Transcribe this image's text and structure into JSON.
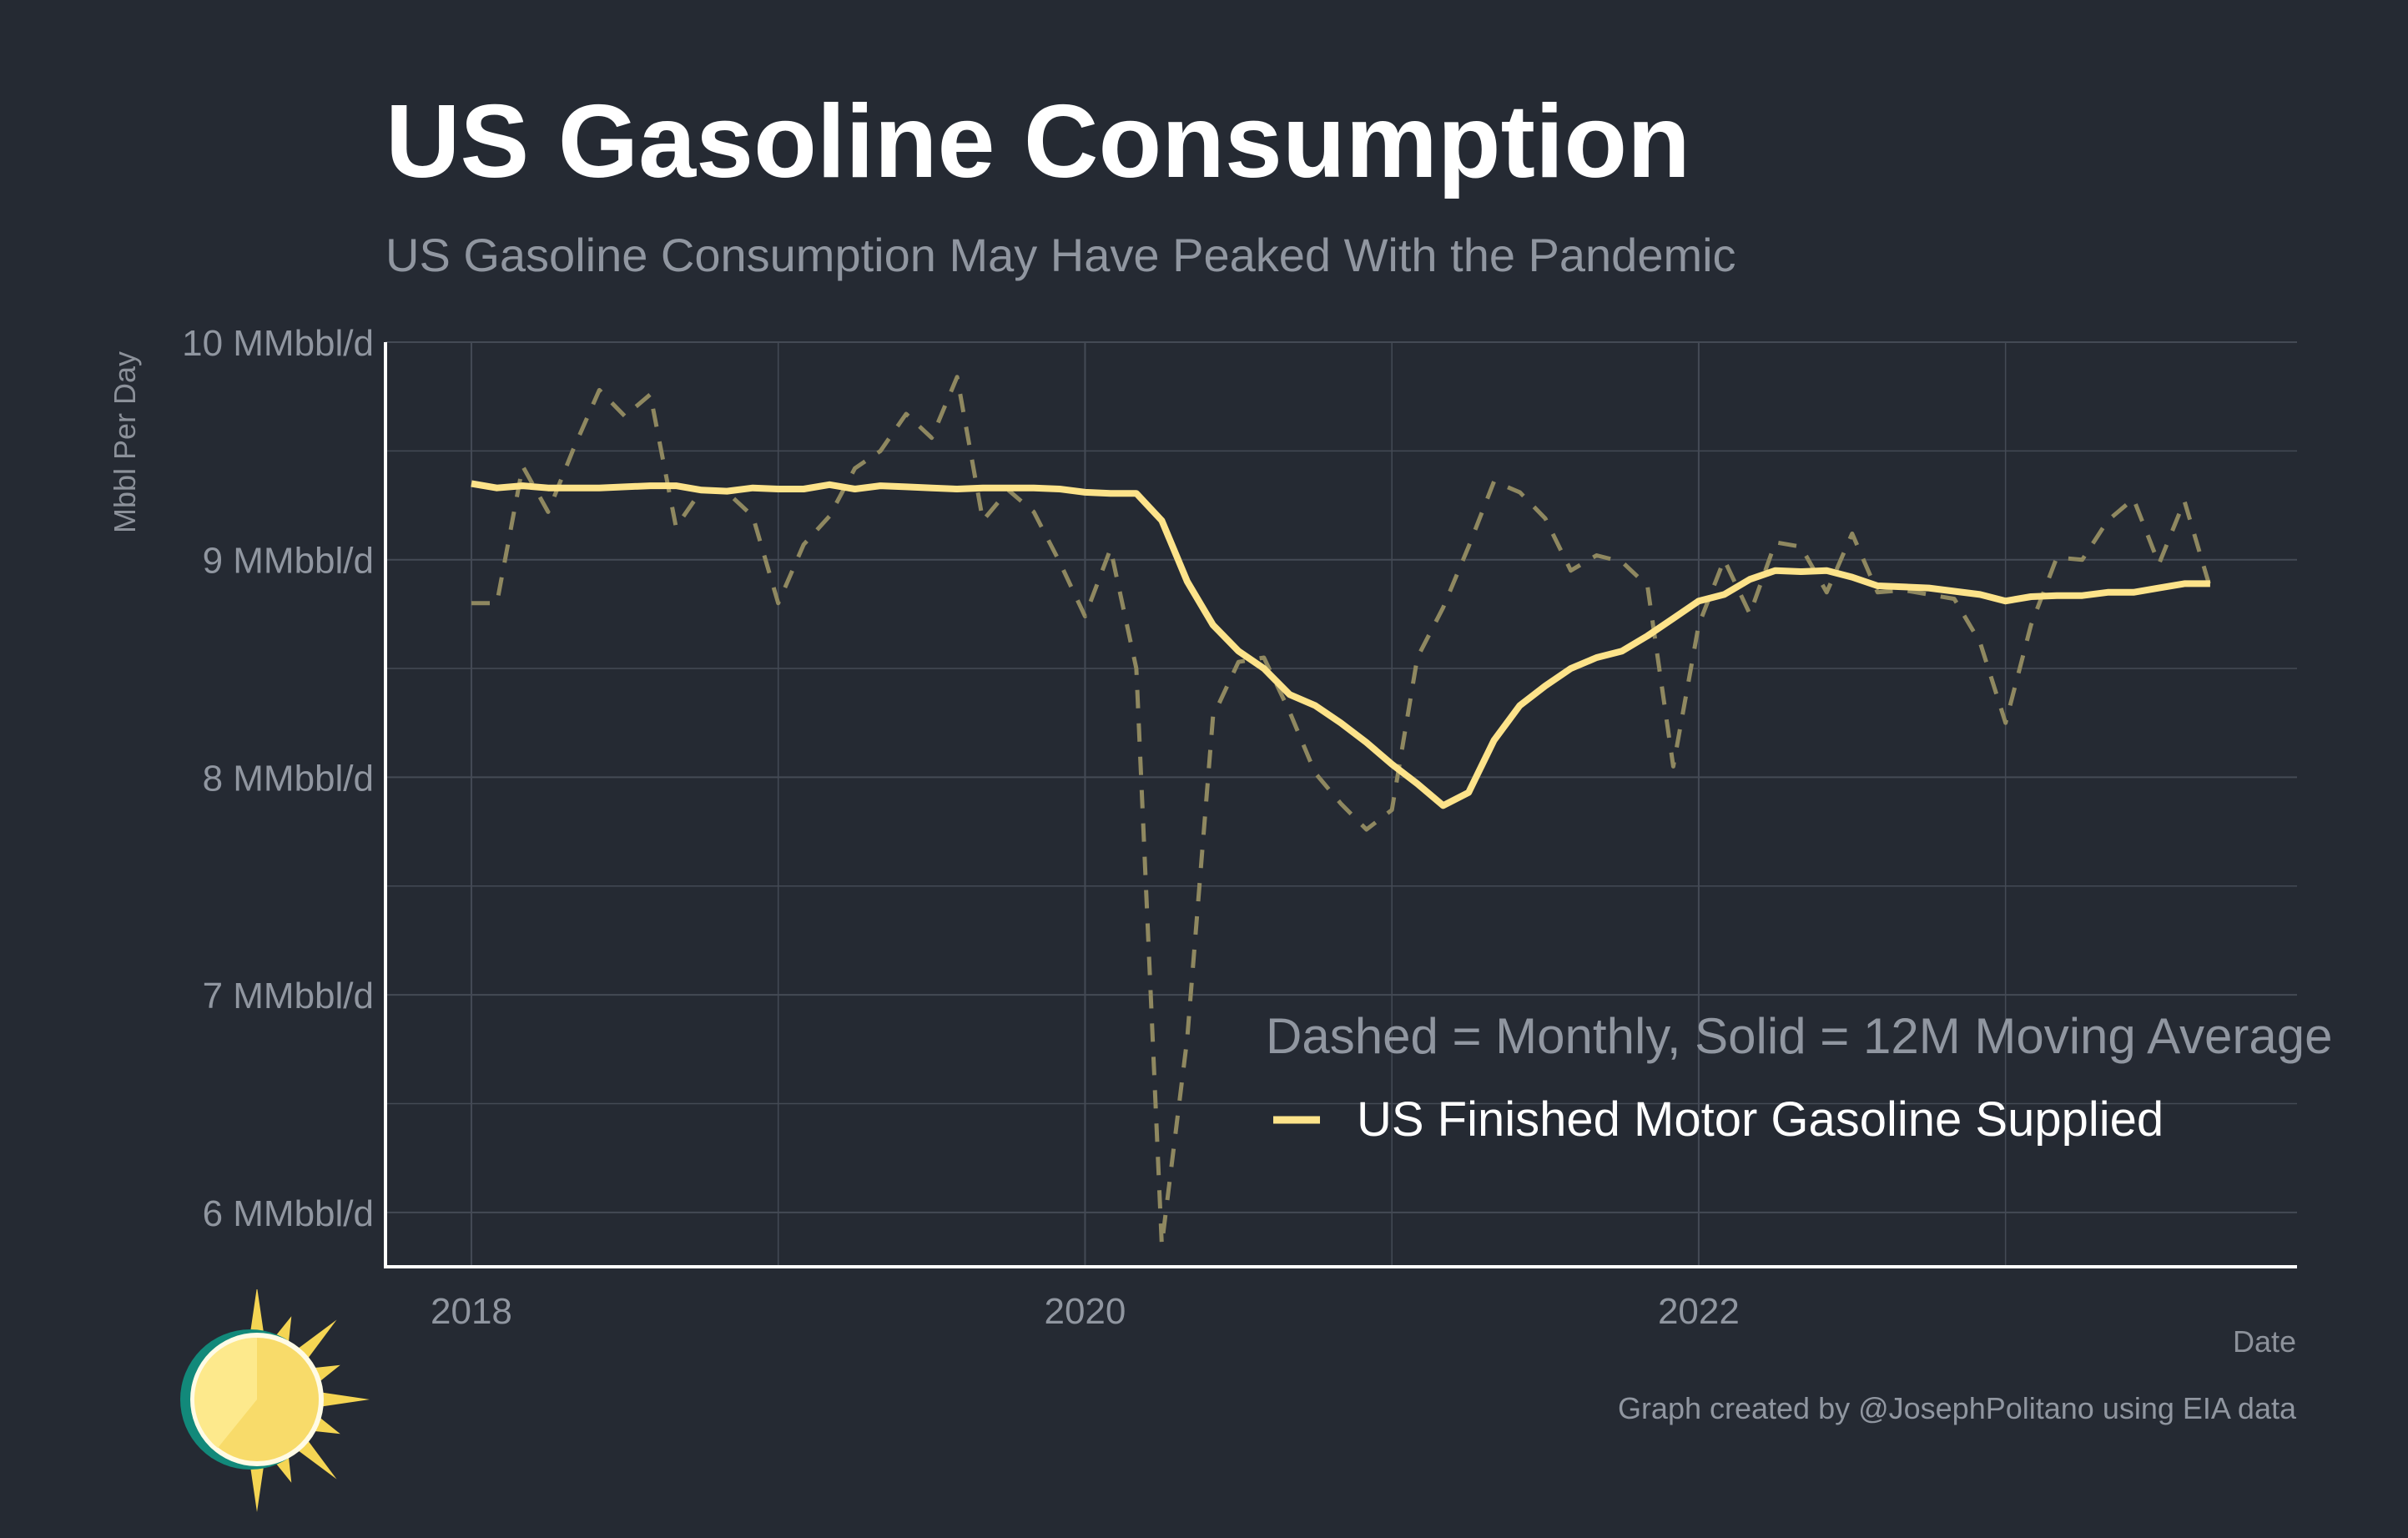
{
  "title": "US Gasoline Consumption",
  "subtitle": "US Gasoline Consumption May Have Peaked With the Pandemic",
  "credit": "Graph created by @JosephPolitano using EIA data",
  "colors": {
    "background": "#252a33",
    "series": "#fde38a",
    "monthly_dashed": "#8f8860",
    "grid": "#444a55",
    "axis": "#ffffff",
    "tick_text": "#9096a0"
  },
  "chart_data": {
    "type": "line",
    "title": "US Gasoline Consumption",
    "subtitle": "US Gasoline Consumption May Have Peaked With the Pandemic",
    "xlabel": "Date",
    "ylabel": "Mbbl Per Day",
    "x_tick_labels": [
      "2018",
      "2020",
      "2022"
    ],
    "x_tick_values": [
      2018,
      2020,
      2022
    ],
    "y_tick_labels": [
      "6 MMbbl/d",
      "7 MMbbl/d",
      "8 MMbbl/d",
      "9 MMbbl/d",
      "10 MMbbl/d"
    ],
    "y_tick_values": [
      6,
      7,
      8,
      9,
      10
    ],
    "xlim": [
      2017.72,
      2023.95
    ],
    "ylim": [
      5.75,
      10
    ],
    "legend_note": "Dashed = Monthly, Solid = 12M Moving Average",
    "legend_placement": "bottom-right",
    "series": [
      {
        "name": "US Finished Motor Gasoline Supplied",
        "style": "solid",
        "description": "12M Moving Average",
        "x": [
          2018.0,
          2018.083,
          2018.167,
          2018.25,
          2018.333,
          2018.417,
          2018.5,
          2018.583,
          2018.667,
          2018.75,
          2018.833,
          2018.917,
          2019.0,
          2019.083,
          2019.167,
          2019.25,
          2019.333,
          2019.417,
          2019.5,
          2019.583,
          2019.667,
          2019.75,
          2019.833,
          2019.917,
          2020.0,
          2020.083,
          2020.167,
          2020.25,
          2020.333,
          2020.417,
          2020.5,
          2020.583,
          2020.667,
          2020.75,
          2020.833,
          2020.917,
          2021.0,
          2021.083,
          2021.167,
          2021.25,
          2021.333,
          2021.417,
          2021.5,
          2021.583,
          2021.667,
          2021.75,
          2021.833,
          2021.917,
          2022.0,
          2022.083,
          2022.167,
          2022.25,
          2022.333,
          2022.417,
          2022.5,
          2022.583,
          2022.667,
          2022.75,
          2022.833,
          2022.917,
          2023.0,
          2023.083,
          2023.167,
          2023.25,
          2023.333,
          2023.417,
          2023.5,
          2023.583,
          2023.667
        ],
        "values": [
          9.35,
          9.33,
          9.34,
          9.33,
          9.33,
          9.33,
          9.335,
          9.34,
          9.34,
          9.32,
          9.315,
          9.33,
          9.325,
          9.325,
          9.345,
          9.325,
          9.34,
          9.335,
          9.33,
          9.325,
          9.33,
          9.33,
          9.33,
          9.325,
          9.31,
          9.305,
          9.305,
          9.18,
          8.9,
          8.7,
          8.58,
          8.5,
          8.38,
          8.33,
          8.25,
          8.16,
          8.06,
          7.97,
          7.87,
          7.93,
          8.17,
          8.33,
          8.42,
          8.5,
          8.55,
          8.58,
          8.65,
          8.73,
          8.81,
          8.84,
          8.91,
          8.95,
          8.945,
          8.95,
          8.92,
          8.88,
          8.875,
          8.87,
          8.855,
          8.84,
          8.81,
          8.83,
          8.835,
          8.835,
          8.85,
          8.85,
          8.87,
          8.89,
          8.89
        ]
      },
      {
        "name": "Monthly",
        "style": "dashed",
        "description": "Monthly",
        "x": [
          2018.0,
          2018.083,
          2018.167,
          2018.25,
          2018.333,
          2018.417,
          2018.5,
          2018.583,
          2018.667,
          2018.75,
          2018.833,
          2018.917,
          2019.0,
          2019.083,
          2019.167,
          2019.25,
          2019.333,
          2019.417,
          2019.5,
          2019.583,
          2019.667,
          2019.75,
          2019.833,
          2019.917,
          2020.0,
          2020.083,
          2020.167,
          2020.25,
          2020.333,
          2020.417,
          2020.5,
          2020.583,
          2020.667,
          2020.75,
          2020.833,
          2020.917,
          2021.0,
          2021.083,
          2021.167,
          2021.25,
          2021.333,
          2021.417,
          2021.5,
          2021.583,
          2021.667,
          2021.75,
          2021.833,
          2021.917,
          2022.0,
          2022.083,
          2022.167,
          2022.25,
          2022.333,
          2022.417,
          2022.5,
          2022.583,
          2022.667,
          2022.75,
          2022.833,
          2022.917,
          2023.0,
          2023.083,
          2023.167,
          2023.25,
          2023.333,
          2023.417,
          2023.5,
          2023.583,
          2023.667
        ],
        "values": [
          8.8,
          8.8,
          9.43,
          9.22,
          9.51,
          9.78,
          9.66,
          9.76,
          9.15,
          9.32,
          9.31,
          9.2,
          8.8,
          9.07,
          9.2,
          9.42,
          9.5,
          9.67,
          9.56,
          9.84,
          9.18,
          9.32,
          9.22,
          8.99,
          8.74,
          9.05,
          8.5,
          5.85,
          6.8,
          8.28,
          8.53,
          8.55,
          8.3,
          8.02,
          7.88,
          7.76,
          7.85,
          8.55,
          8.78,
          9.06,
          9.36,
          9.31,
          9.19,
          8.95,
          9.02,
          8.99,
          8.88,
          8.05,
          8.7,
          9.0,
          8.75,
          9.08,
          9.06,
          8.85,
          9.12,
          8.85,
          8.86,
          8.84,
          8.82,
          8.62,
          8.25,
          8.7,
          9.01,
          9.0,
          9.18,
          9.28,
          8.98,
          9.27,
          8.87
        ]
      }
    ]
  }
}
